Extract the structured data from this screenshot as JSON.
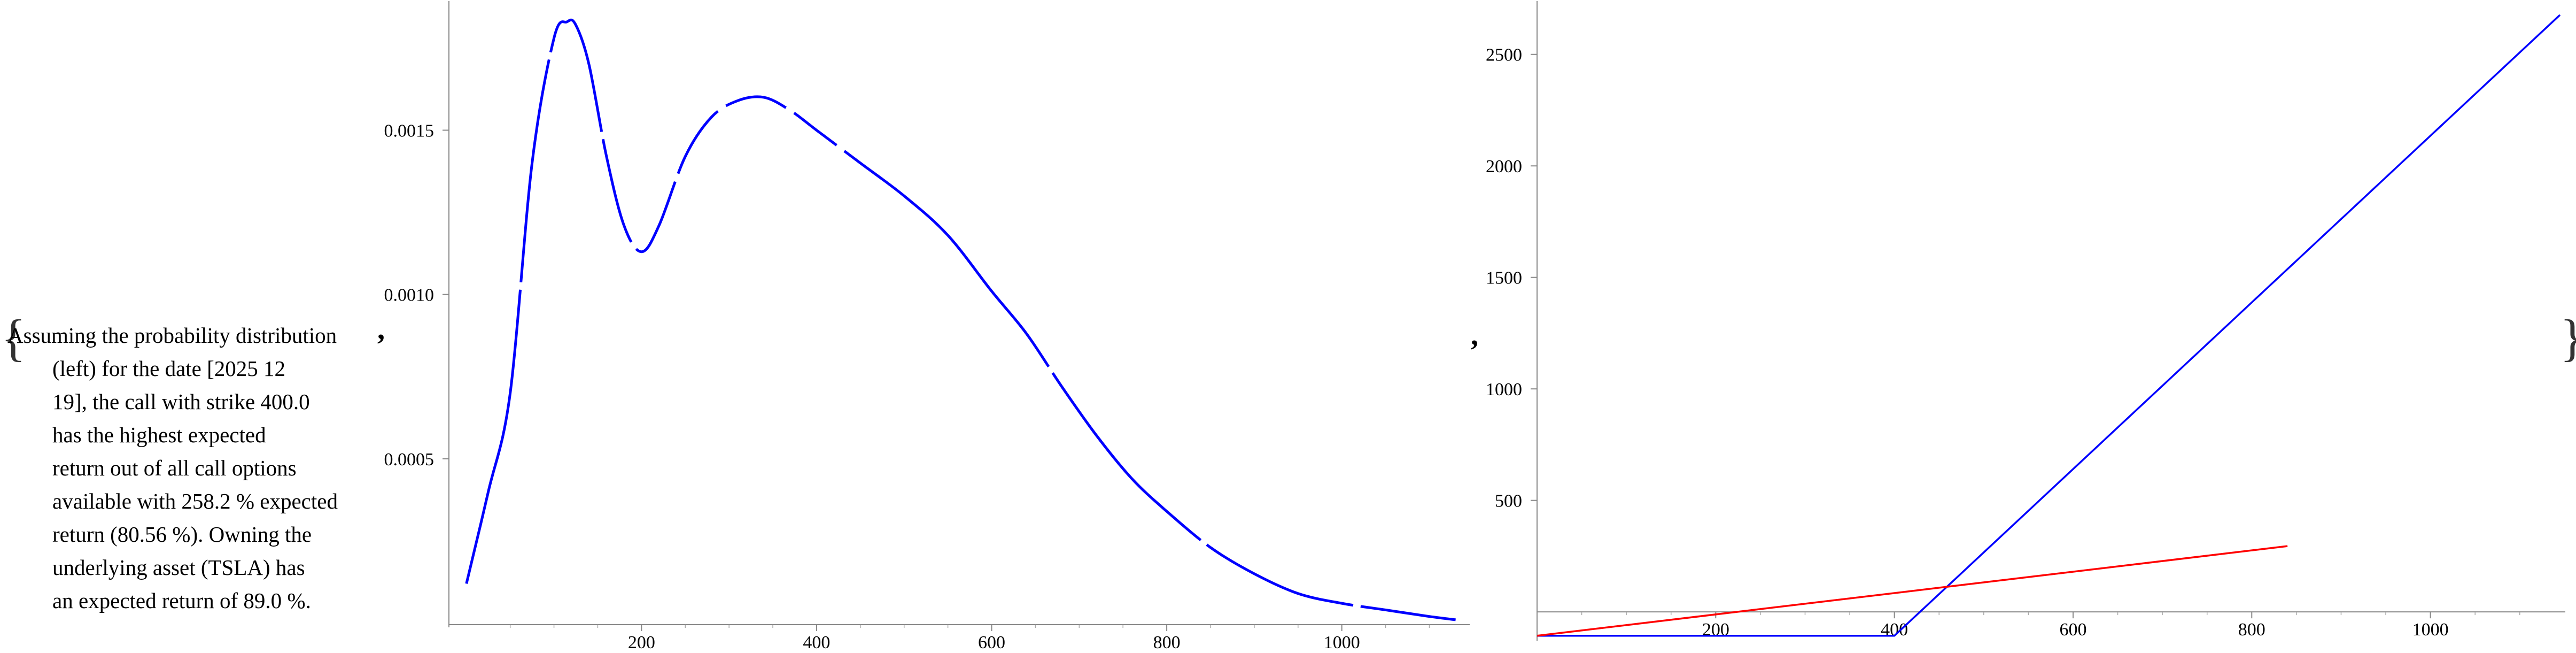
{
  "caption": {
    "lines": [
      "Assuming the probability distribution",
      "(left) for the date [2025 12",
      "19], the call with strike 400.0",
      "has the highest expected",
      "return out of all call options",
      "available with 258.2 % expected",
      "return (80.56 %). Owning the",
      "underlying asset (TSLA) has",
      "an expected return of 89.0 %."
    ]
  },
  "punctuation": {
    "open_brace": "{",
    "close_brace": "}",
    "comma": ","
  },
  "chart_data": [
    {
      "type": "line",
      "title": "",
      "xlabel": "",
      "ylabel": "",
      "xlim": [
        -20,
        1140
      ],
      "ylim": [
        0,
        0.00188
      ],
      "x_ticks": [
        200,
        400,
        600,
        800,
        1000
      ],
      "y_ticks": [
        0.0005,
        0.001,
        0.0015
      ],
      "x_tick_labels": [
        "200",
        "400",
        "600",
        "800",
        "1000"
      ],
      "y_tick_labels": [
        "0.0005",
        "0.0010",
        "0.0015"
      ],
      "grid": false,
      "series": [
        {
          "color": "#0000ff",
          "style": "solid then dashed",
          "x": [
            0,
            25,
            50,
            75,
            100,
            115,
            125,
            140,
            160,
            180,
            200,
            220,
            250,
            280,
            310,
            340,
            370,
            400,
            450,
            500,
            550,
            600,
            640,
            680,
            720,
            760,
            800,
            850,
            900,
            950,
            1000,
            1050,
            1100,
            1130
          ],
          "y": [
            0.00012,
            0.0004,
            0.0007,
            0.0014,
            0.00178,
            0.00183,
            0.00182,
            0.0017,
            0.00142,
            0.00121,
            0.00113,
            0.00121,
            0.00142,
            0.00154,
            0.00159,
            0.0016,
            0.00156,
            0.0015,
            0.0014,
            0.0013,
            0.00118,
            0.00101,
            0.00088,
            0.00072,
            0.00057,
            0.00044,
            0.00034,
            0.00023,
            0.00015,
            9e-05,
            6e-05,
            4e-05,
            2e-05,
            1e-05
          ]
        }
      ]
    },
    {
      "type": "line",
      "title": "",
      "xlabel": "",
      "ylabel": "",
      "xlim": [
        0,
        1145
      ],
      "ylim": [
        -110,
        2720
      ],
      "x_ticks": [
        200,
        400,
        600,
        800,
        1000
      ],
      "y_ticks": [
        500,
        1000,
        1500,
        2000,
        2500
      ],
      "x_tick_labels": [
        "200",
        "400",
        "600",
        "800",
        "1000"
      ],
      "y_tick_labels": [
        "500",
        "1000",
        "1500",
        "2000",
        "2500"
      ],
      "grid": false,
      "series": [
        {
          "color": "#0000ff",
          "x": [
            0,
            400,
            1145
          ],
          "y": [
            -107,
            -107,
            2677
          ]
        },
        {
          "color": "#ff0000",
          "x": [
            0,
            840
          ],
          "y": [
            -107,
            295
          ]
        }
      ]
    }
  ]
}
